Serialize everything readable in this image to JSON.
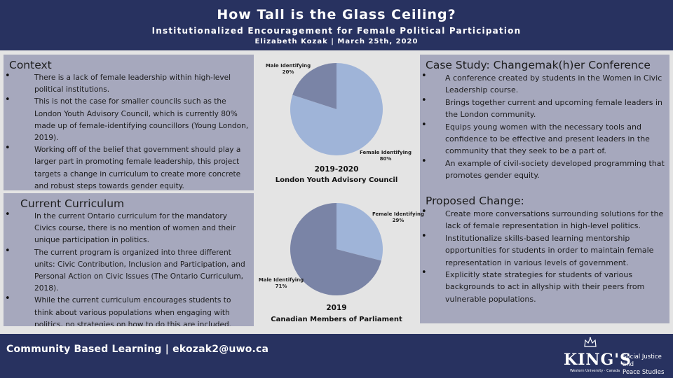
{
  "header": {
    "title": "How Tall is the Glass Ceiling?",
    "subtitle": "Institutionalized Encouragement for Female Political Participation",
    "author": "Elizabeth Kozak | March 25th, 2020"
  },
  "context": {
    "heading": "Context",
    "items": [
      "There is a lack of female leadership within high-level political institutions.",
      "This is not the case for smaller councils such as the London Youth Advisory Council, which is currently 80% made up of female-identifying councillors (Young London, 2019).",
      "Working off of the belief that government should play a larger part in promoting female leadership, this project targets a change in curriculum to create more concrete and robust steps towards gender equity."
    ]
  },
  "curriculum": {
    "heading": "Current Curriculum",
    "items": [
      "In the current Ontario curriculum for the mandatory Civics course, there is no mention of women and their unique participation in politics.",
      "The current program is organized into three different units: Civic Contribution, Inclusion and Participation, and Personal Action on Civic Issues (The Ontario Curriculum, 2018).",
      "While the current curriculum encourages students to think about various populations when engaging with politics, no strategies on how to do this are included."
    ]
  },
  "case_study": {
    "heading": "Case Study: Changemak(h)er Conference",
    "items": [
      "A conference created by students in the Women in Civic Leadership course.",
      "Brings together current and upcoming female leaders in the London community.",
      "Equips young women with the necessary tools and confidence to be effective and present leaders in the community that they seek to be a part of.",
      "An example of civil-society developed programming that promotes gender equity."
    ]
  },
  "proposed": {
    "heading": "Proposed Change:",
    "items": [
      "Create more conversations surrounding solutions for the lack of female representation in high-level politics.",
      "Institutionalize skills-based learning mentorship opportunities for students  in order to maintain female representation in various levels of government.",
      "Explicitly state strategies for students of various backgrounds to act in allyship with their peers from vulnerable populations."
    ]
  },
  "chart_data": [
    {
      "type": "pie",
      "title": "2019-2020",
      "subtitle": "London Youth Advisory Council",
      "slices": [
        {
          "label": "Female Identifying",
          "value": 80,
          "value_label": "80%",
          "color": "#9fb4d8"
        },
        {
          "label": "Male Identifying",
          "value": 20,
          "value_label": "20%",
          "color": "#7a84a6"
        }
      ]
    },
    {
      "type": "pie",
      "title": "2019",
      "subtitle": "Canadian Members of Parliament",
      "slices": [
        {
          "label": "Female Identifying",
          "value": 29,
          "value_label": "29%",
          "color": "#9fb4d8"
        },
        {
          "label": "Male Identifying",
          "value": 71,
          "value_label": "71%",
          "color": "#7a84a6"
        }
      ]
    }
  ],
  "footer": {
    "text": "Community Based Learning | ekozak2@uwo.ca",
    "logo_text": "KING'S",
    "logo_sub": "Western University · Canada",
    "logo_side_1": "Social Justice and",
    "logo_side_2": "Peace Studies"
  }
}
